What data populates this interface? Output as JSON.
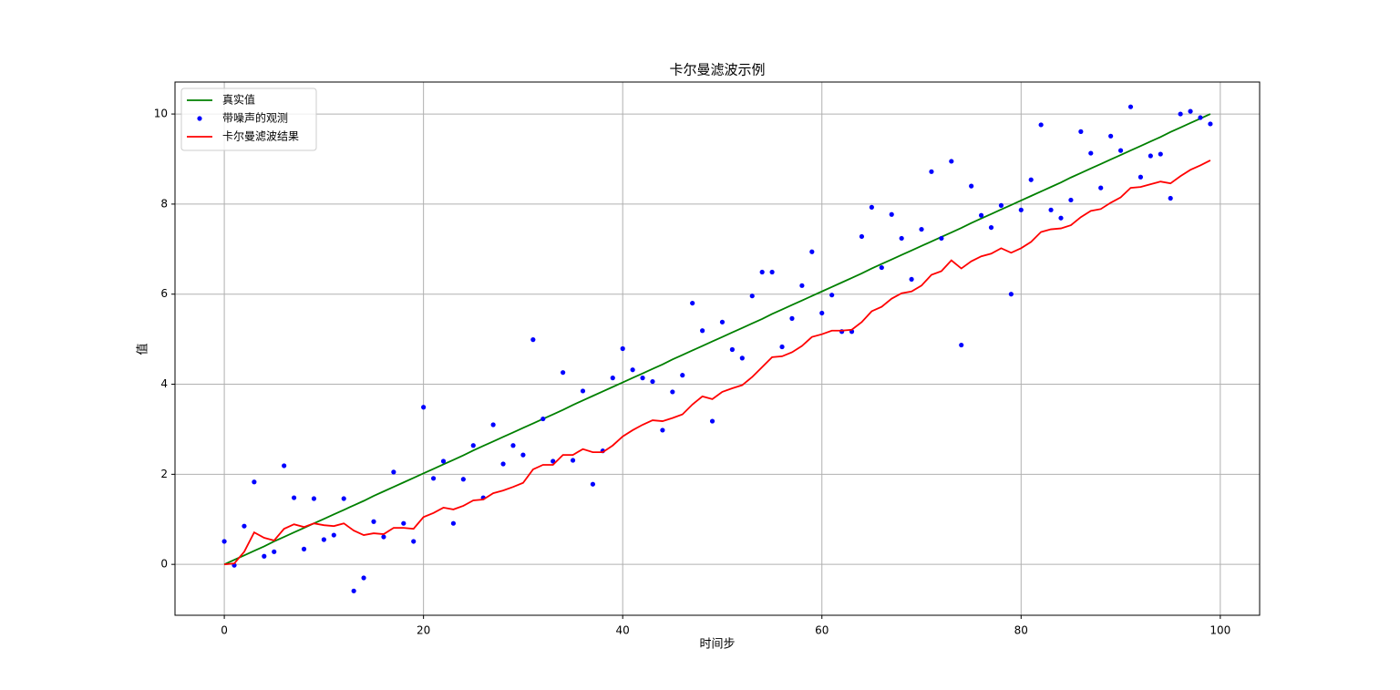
{
  "chart_data": {
    "type": "line",
    "title": "卡尔曼滤波示例",
    "x_label": "时间步",
    "y_label": "值",
    "x": [
      0,
      1,
      2,
      3,
      4,
      5,
      6,
      7,
      8,
      9,
      10,
      11,
      12,
      13,
      14,
      15,
      16,
      17,
      18,
      19,
      20,
      21,
      22,
      23,
      24,
      25,
      26,
      27,
      28,
      29,
      30,
      31,
      32,
      33,
      34,
      35,
      36,
      37,
      38,
      39,
      40,
      41,
      42,
      43,
      44,
      45,
      46,
      47,
      48,
      49,
      50,
      51,
      52,
      53,
      54,
      55,
      56,
      57,
      58,
      59,
      60,
      61,
      62,
      63,
      64,
      65,
      66,
      67,
      68,
      69,
      70,
      71,
      72,
      73,
      74,
      75,
      76,
      77,
      78,
      79,
      80,
      81,
      82,
      83,
      84,
      85,
      86,
      87,
      88,
      89,
      90,
      91,
      92,
      93,
      94,
      95,
      96,
      97,
      98,
      99
    ],
    "series": [
      {
        "name": "真实值",
        "color": "#008000",
        "marker": "none",
        "linestyle": "solid",
        "values": [
          0,
          0.1,
          0.2,
          0.3,
          0.4,
          0.51,
          0.61,
          0.71,
          0.81,
          0.91,
          1.01,
          1.11,
          1.21,
          1.31,
          1.41,
          1.52,
          1.62,
          1.72,
          1.82,
          1.92,
          2.02,
          2.12,
          2.22,
          2.32,
          2.42,
          2.53,
          2.63,
          2.73,
          2.83,
          2.93,
          3.03,
          3.13,
          3.23,
          3.33,
          3.43,
          3.54,
          3.64,
          3.74,
          3.84,
          3.94,
          4.04,
          4.14,
          4.24,
          4.34,
          4.44,
          4.55,
          4.65,
          4.75,
          4.85,
          4.95,
          5.05,
          5.15,
          5.25,
          5.35,
          5.45,
          5.56,
          5.66,
          5.76,
          5.86,
          5.96,
          6.06,
          6.16,
          6.26,
          6.36,
          6.46,
          6.57,
          6.67,
          6.77,
          6.87,
          6.97,
          7.07,
          7.17,
          7.27,
          7.37,
          7.47,
          7.58,
          7.68,
          7.78,
          7.88,
          7.98,
          8.08,
          8.18,
          8.28,
          8.38,
          8.48,
          8.59,
          8.69,
          8.79,
          8.89,
          8.99,
          9.09,
          9.19,
          9.29,
          9.39,
          9.49,
          9.6,
          9.7,
          9.8,
          9.9,
          10
        ]
      },
      {
        "name": "带噪声的观测",
        "color": "#0000ff",
        "marker": "circle",
        "linestyle": "none",
        "values": [
          0.51,
          -0.02,
          0.85,
          1.83,
          0.18,
          0.28,
          2.19,
          1.48,
          0.34,
          1.46,
          0.55,
          0.65,
          1.46,
          -0.59,
          -0.3,
          0.95,
          0.61,
          2.05,
          0.91,
          0.51,
          3.49,
          1.91,
          2.29,
          0.91,
          1.89,
          2.64,
          1.48,
          3.1,
          2.23,
          2.64,
          2.43,
          4.99,
          3.23,
          2.29,
          4.26,
          2.31,
          3.85,
          1.78,
          2.52,
          4.14,
          4.79,
          4.32,
          4.14,
          4.06,
          2.98,
          3.83,
          4.2,
          5.8,
          5.19,
          3.18,
          5.38,
          4.77,
          4.58,
          5.96,
          6.49,
          6.49,
          4.83,
          5.46,
          6.19,
          6.94,
          5.58,
          5.98,
          5.17,
          5.17,
          7.28,
          7.93,
          6.59,
          7.77,
          7.24,
          6.33,
          7.44,
          8.72,
          7.24,
          8.95,
          4.87,
          8.4,
          7.75,
          7.48,
          7.97,
          6,
          7.87,
          8.54,
          9.76,
          7.87,
          7.69,
          8.09,
          9.61,
          9.13,
          8.36,
          9.51,
          9.19,
          10.16,
          8.6,
          9.07,
          9.11,
          8.13,
          10,
          10.06,
          9.92,
          9.78
        ]
      },
      {
        "name": "卡尔曼滤波结果",
        "color": "#ff0000",
        "marker": "none",
        "linestyle": "solid",
        "values": [
          0,
          0.02,
          0.28,
          0.71,
          0.59,
          0.53,
          0.79,
          0.89,
          0.83,
          0.91,
          0.87,
          0.85,
          0.91,
          0.75,
          0.65,
          0.69,
          0.67,
          0.81,
          0.81,
          0.79,
          1.05,
          1.14,
          1.26,
          1.22,
          1.3,
          1.42,
          1.44,
          1.58,
          1.64,
          1.72,
          1.81,
          2.11,
          2.21,
          2.21,
          2.43,
          2.43,
          2.56,
          2.49,
          2.49,
          2.64,
          2.84,
          2.98,
          3.1,
          3.2,
          3.18,
          3.25,
          3.33,
          3.55,
          3.73,
          3.67,
          3.83,
          3.91,
          3.98,
          4.16,
          4.38,
          4.6,
          4.62,
          4.71,
          4.85,
          5.05,
          5.11,
          5.19,
          5.19,
          5.21,
          5.38,
          5.62,
          5.72,
          5.9,
          6.02,
          6.06,
          6.19,
          6.43,
          6.51,
          6.75,
          6.57,
          6.73,
          6.84,
          6.9,
          7.02,
          6.92,
          7.02,
          7.16,
          7.38,
          7.44,
          7.46,
          7.53,
          7.71,
          7.85,
          7.89,
          8.03,
          8.15,
          8.36,
          8.38,
          8.44,
          8.5,
          8.46,
          8.62,
          8.76,
          8.86,
          8.97
        ]
      }
    ],
    "xlim": [
      -4.95,
      103.95
    ],
    "ylim": [
      -1.13,
      10.71
    ],
    "xticks": [
      0,
      20,
      40,
      60,
      80,
      100
    ],
    "yticks": [
      0,
      2,
      4,
      6,
      8,
      10
    ],
    "grid": true,
    "legend": "upper left"
  }
}
